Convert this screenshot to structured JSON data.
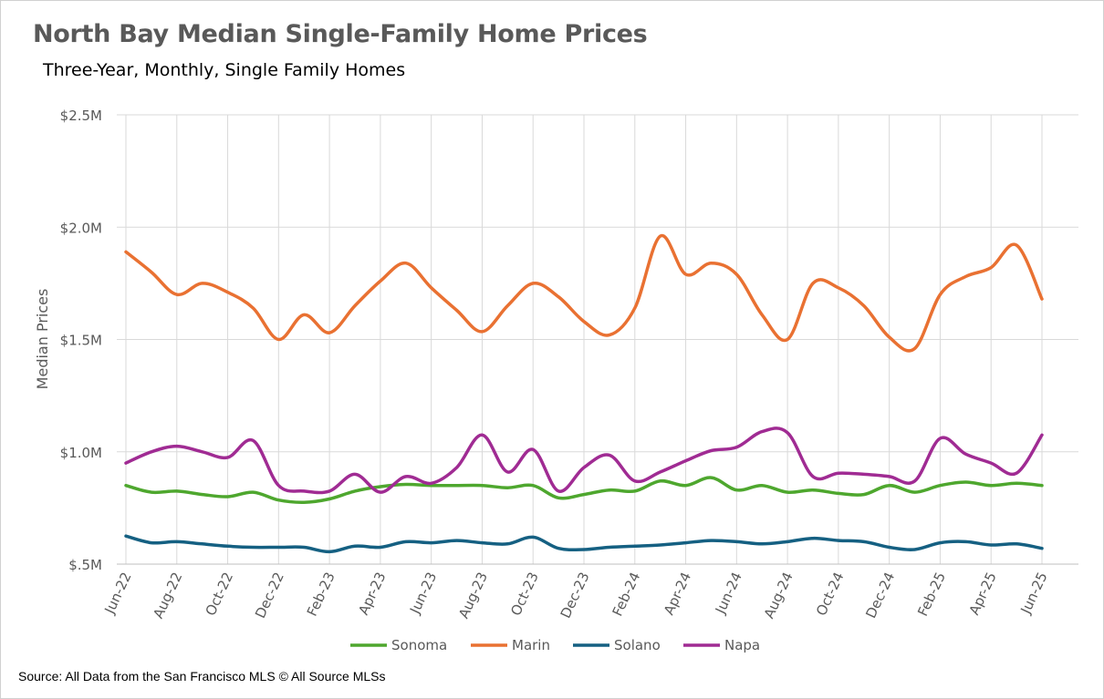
{
  "title": "North Bay Median Single-Family Home Prices",
  "subtitle": "Three-Year, Monthly, Single Family Homes",
  "source": "Source: All Data from the San Francisco MLS © All Source MLSs",
  "colors": {
    "Sonoma": "#4ea72e",
    "Marin": "#e97132",
    "Solano": "#156082",
    "Napa": "#a02b93",
    "grid": "#d9d9d9",
    "axis": "#bfbfbf",
    "text": "#595959"
  },
  "chart_data": {
    "type": "line",
    "ylabel": "Median Prices",
    "ylim": [
      500000,
      2500000
    ],
    "yticks": [
      500000,
      1000000,
      1500000,
      2000000,
      2500000
    ],
    "ytick_labels": [
      "$.5M",
      "$1.0M",
      "$1.5M",
      "$2.0M",
      "$2.5M"
    ],
    "x": [
      "Jun-22",
      "Jul-22",
      "Aug-22",
      "Sep-22",
      "Oct-22",
      "Nov-22",
      "Dec-22",
      "Jan-23",
      "Feb-23",
      "Mar-23",
      "Apr-23",
      "May-23",
      "Jun-23",
      "Jul-23",
      "Aug-23",
      "Sep-23",
      "Oct-23",
      "Nov-23",
      "Dec-23",
      "Jan-24",
      "Feb-24",
      "Mar-24",
      "Apr-24",
      "May-24",
      "Jun-24",
      "Jul-24",
      "Aug-24",
      "Sep-24",
      "Oct-24",
      "Nov-24",
      "Dec-24",
      "Jan-25",
      "Feb-25",
      "Mar-25",
      "Apr-25",
      "May-25",
      "Jun-25"
    ],
    "xtick_labels": [
      "Jun-22",
      "Aug-22",
      "Oct-22",
      "Dec-22",
      "Feb-23",
      "Apr-23",
      "Jun-23",
      "Aug-23",
      "Oct-23",
      "Dec-23",
      "Feb-24",
      "Apr-24",
      "Jun-24",
      "Aug-24",
      "Oct-24",
      "Dec-24",
      "Feb-25",
      "Apr-25",
      "Jun-25"
    ],
    "grid": true,
    "legend_position": "bottom",
    "series": [
      {
        "name": "Sonoma",
        "values": [
          850000,
          820000,
          825000,
          810000,
          800000,
          820000,
          785000,
          775000,
          790000,
          825000,
          845000,
          855000,
          850000,
          850000,
          850000,
          840000,
          850000,
          795000,
          810000,
          830000,
          825000,
          870000,
          850000,
          885000,
          830000,
          850000,
          820000,
          830000,
          815000,
          810000,
          850000,
          820000,
          850000,
          865000,
          850000,
          860000,
          850000
        ]
      },
      {
        "name": "Marin",
        "values": [
          1890000,
          1800000,
          1700000,
          1750000,
          1710000,
          1640000,
          1500000,
          1610000,
          1530000,
          1650000,
          1760000,
          1840000,
          1730000,
          1630000,
          1535000,
          1650000,
          1750000,
          1690000,
          1580000,
          1520000,
          1640000,
          1960000,
          1790000,
          1840000,
          1790000,
          1610000,
          1500000,
          1750000,
          1730000,
          1650000,
          1510000,
          1460000,
          1700000,
          1780000,
          1820000,
          1920000,
          1680000
        ]
      },
      {
        "name": "Solano",
        "values": [
          625000,
          595000,
          600000,
          590000,
          580000,
          575000,
          575000,
          575000,
          555000,
          580000,
          575000,
          600000,
          595000,
          605000,
          595000,
          590000,
          620000,
          570000,
          565000,
          575000,
          580000,
          585000,
          595000,
          605000,
          600000,
          590000,
          600000,
          615000,
          605000,
          600000,
          575000,
          565000,
          595000,
          600000,
          585000,
          590000,
          570000
        ]
      },
      {
        "name": "Napa",
        "values": [
          950000,
          1000000,
          1025000,
          1000000,
          975000,
          1050000,
          850000,
          825000,
          825000,
          900000,
          820000,
          890000,
          860000,
          930000,
          1075000,
          910000,
          1010000,
          825000,
          930000,
          985000,
          870000,
          910000,
          960000,
          1005000,
          1020000,
          1090000,
          1085000,
          890000,
          905000,
          900000,
          890000,
          870000,
          1060000,
          990000,
          950000,
          905000,
          1075000
        ]
      }
    ]
  }
}
